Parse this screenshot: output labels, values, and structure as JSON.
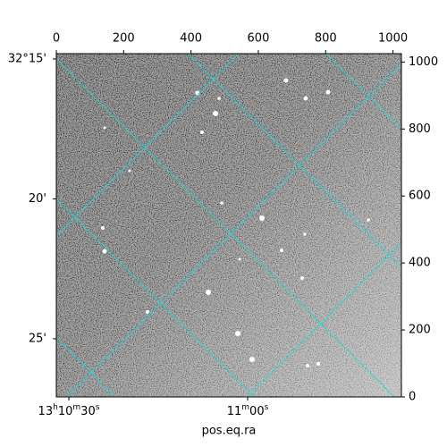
{
  "chart_data": {
    "type": "image",
    "xlabel": "pos.eq.ra",
    "xlim": [
      0,
      1025
    ],
    "xticks": [
      0,
      200,
      400,
      600,
      800,
      1000
    ],
    "ylim": [
      0,
      1025
    ],
    "yticks": [
      0,
      200,
      400,
      600,
      800,
      1000
    ],
    "ra_lim": [
      27.9,
      85.8
    ],
    "ra_ticks": [
      {
        "value": 30,
        "label": "13h10m30s"
      },
      {
        "value": 60,
        "label": "11m00s"
      }
    ],
    "dec_lim": [
      27.08,
      14.81
    ],
    "dec_ticks": [
      {
        "value": 15,
        "label": "32°15'"
      },
      {
        "value": 20,
        "label": "20'"
      },
      {
        "value": 25,
        "label": "25'"
      }
    ],
    "grid_color": "#00e5e5"
  }
}
